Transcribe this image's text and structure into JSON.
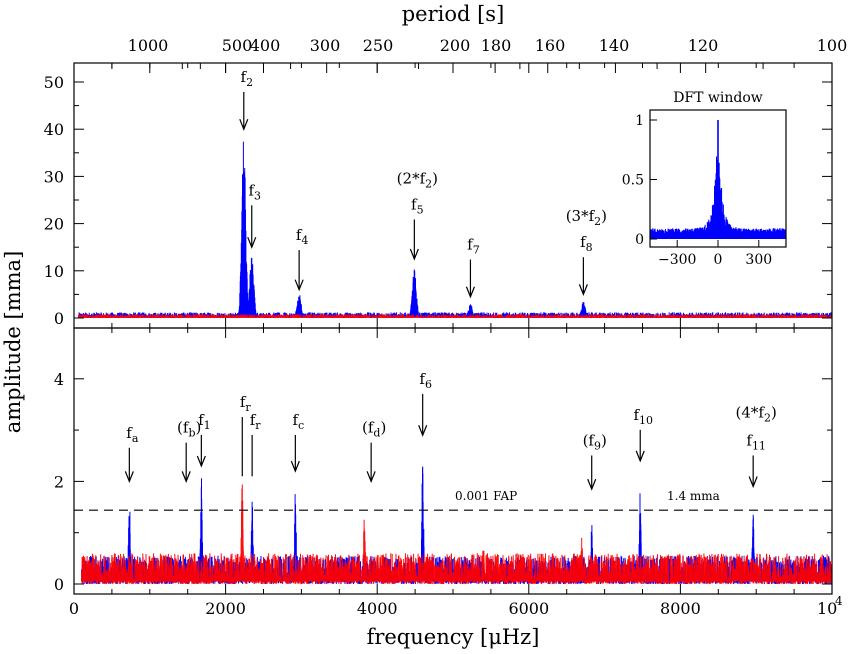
{
  "figure": {
    "top_axis_title": "period [s]",
    "left_axis_title": "amplitude [mma]",
    "bottom_axis_title": "frequency [μHz]",
    "bottom_tick_extra": "4"
  },
  "colors": {
    "data_series": "#0000ff",
    "residual_series": "#ff0000",
    "axes": "#000000"
  },
  "chart_data": [
    {
      "panel": "top",
      "type": "line",
      "xlim": [
        0,
        10000
      ],
      "ylim": [
        0,
        55
      ],
      "x_ticks": [
        0,
        2000,
        4000,
        6000,
        8000,
        "10"
      ],
      "y_ticks": [
        0,
        10,
        20,
        30,
        40,
        50
      ],
      "period_ticks": [
        "1000",
        "500",
        "400",
        "300",
        "250",
        "200",
        "180",
        "160",
        "140",
        "120",
        "100"
      ],
      "series": [
        {
          "color": "blue",
          "noise_level": 1.2,
          "peaks": [
            {
              "x": 2240,
              "y": 38.5
            },
            {
              "x": 2345,
              "y": 13.5
            },
            {
              "x": 2970,
              "y": 5.2
            },
            {
              "x": 4490,
              "y": 10.5
            },
            {
              "x": 5230,
              "y": 3.0
            },
            {
              "x": 6720,
              "y": 3.5
            }
          ]
        },
        {
          "color": "red",
          "noise_level": 0.8,
          "peaks": []
        }
      ],
      "annotations": [
        {
          "id": "f2",
          "pre": "",
          "main": "f",
          "sub": "2",
          "post": "",
          "x": 2240,
          "tip": 40,
          "label_y": 50
        },
        {
          "id": "f3",
          "pre": "",
          "main": "f",
          "sub": "3",
          "post": "",
          "x": 2345,
          "tip": 15,
          "label_y": 26
        },
        {
          "id": "f4",
          "pre": "",
          "main": "f",
          "sub": "4",
          "post": "",
          "x": 2970,
          "tip": 6,
          "label_y": 16.5
        },
        {
          "id": "f5",
          "pre": "",
          "main": "f",
          "sub": "5",
          "post": "",
          "x": 4490,
          "tip": 12.5,
          "label_y": 23
        },
        {
          "id": "f7",
          "pre": "",
          "main": "f",
          "sub": "7",
          "post": "",
          "x": 5230,
          "tip": 4.5,
          "label_y": 14.5
        },
        {
          "id": "f8",
          "pre": "",
          "main": "f",
          "sub": "8",
          "post": "",
          "x": 6720,
          "tip": 5,
          "label_y": 15
        },
        {
          "id": "h2",
          "pre": "(2*",
          "main": "f",
          "sub": "2",
          "post": ")",
          "x": 4490,
          "tip": null,
          "label_y": 28.5
        },
        {
          "id": "h3",
          "pre": "(3*",
          "main": "f",
          "sub": "2",
          "post": ")",
          "x": 6720,
          "tip": null,
          "label_y": 20.5
        }
      ],
      "inset": {
        "title": "DFT window",
        "type": "line",
        "xlim": [
          -500,
          500
        ],
        "ylim": [
          0,
          1.1
        ],
        "x_tick_labels": [
          "−300",
          "0",
          "300"
        ],
        "y_tick_labels": [
          "0",
          "0.5",
          "1"
        ],
        "peak": {
          "x": 0,
          "y": 1.0
        }
      }
    },
    {
      "panel": "bottom",
      "type": "line",
      "xlim": [
        0,
        10000
      ],
      "ylim": [
        0,
        5
      ],
      "x_ticks": [
        0,
        2000,
        4000,
        6000,
        8000,
        "10"
      ],
      "y_ticks": [
        0,
        2,
        4
      ],
      "threshold": {
        "y": 1.4,
        "left_label": "0.001 FAP",
        "right_label": "1.4 mma"
      },
      "series": [
        {
          "color": "blue",
          "noise_level": 0.55,
          "peaks": [
            {
              "x": 730,
              "y": 1.75
            },
            {
              "x": 1680,
              "y": 2.2
            },
            {
              "x": 2350,
              "y": 1.65
            },
            {
              "x": 2920,
              "y": 1.95
            },
            {
              "x": 4600,
              "y": 2.45
            },
            {
              "x": 6830,
              "y": 1.2
            },
            {
              "x": 7470,
              "y": 1.85
            },
            {
              "x": 8960,
              "y": 1.5
            }
          ]
        },
        {
          "color": "red",
          "noise_level": 0.6,
          "peaks": [
            {
              "x": 2220,
              "y": 2.05
            },
            {
              "x": 3830,
              "y": 1.45
            },
            {
              "x": 6700,
              "y": 0.95
            },
            {
              "x": 5400,
              "y": 0.9
            }
          ]
        }
      ],
      "annotations": [
        {
          "id": "fa",
          "pre": "",
          "main": "f",
          "sub": "a",
          "post": "",
          "x": 730,
          "tip": 2.0,
          "label_y": 2.85,
          "line_only": false
        },
        {
          "id": "fb",
          "pre": "(",
          "main": "f",
          "sub": "b",
          "post": ")",
          "x": 1480,
          "tip": 2.0,
          "label_y": 2.95,
          "line_only": false
        },
        {
          "id": "f1",
          "pre": "",
          "main": "f",
          "sub": "1",
          "post": "",
          "x": 1680,
          "tip": 2.3,
          "label_y": 3.1,
          "line_only": false
        },
        {
          "id": "fr1",
          "pre": "",
          "main": "f",
          "sub": "r",
          "post": "",
          "x": 2220,
          "tip": 2.1,
          "label_y": 3.45,
          "line_only": true
        },
        {
          "id": "fr2",
          "pre": "",
          "main": "f",
          "sub": "r",
          "post": "",
          "x": 2350,
          "tip": 2.1,
          "label_y": 3.1,
          "line_only": true
        },
        {
          "id": "fc",
          "pre": "",
          "main": "f",
          "sub": "c",
          "post": "",
          "x": 2920,
          "tip": 2.2,
          "label_y": 3.1,
          "line_only": false
        },
        {
          "id": "fd",
          "pre": "(",
          "main": "f",
          "sub": "d",
          "post": ")",
          "x": 3920,
          "tip": 2.0,
          "label_y": 2.95,
          "line_only": false
        },
        {
          "id": "f6",
          "pre": "",
          "main": "f",
          "sub": "6",
          "post": "",
          "x": 4600,
          "tip": 2.9,
          "label_y": 3.9,
          "line_only": false
        },
        {
          "id": "f9",
          "pre": "(",
          "main": "f",
          "sub": "9",
          "post": ")",
          "x": 6830,
          "tip": 1.85,
          "label_y": 2.7,
          "line_only": false
        },
        {
          "id": "f10",
          "pre": "",
          "main": "f",
          "sub": "10",
          "post": "",
          "x": 7470,
          "tip": 2.4,
          "label_y": 3.2,
          "line_only": false
        },
        {
          "id": "f11",
          "pre": "",
          "main": "f",
          "sub": "11",
          "post": "",
          "x": 8960,
          "tip": 1.9,
          "label_y": 2.7,
          "line_only": false
        },
        {
          "id": "h4",
          "pre": "(4*",
          "main": "f",
          "sub": "2",
          "post": ")",
          "x": 8960,
          "tip": null,
          "label_y": 3.25,
          "line_only": false
        }
      ]
    }
  ]
}
